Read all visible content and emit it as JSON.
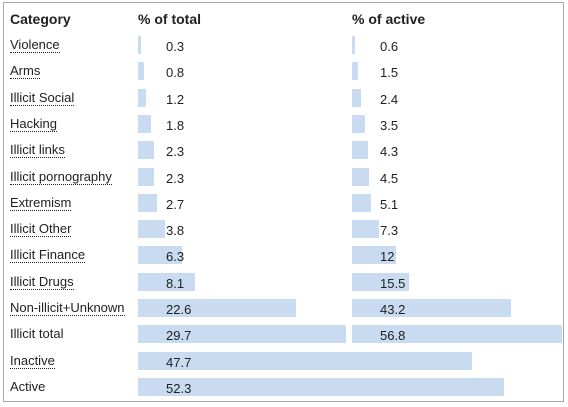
{
  "table": {
    "headers": {
      "category": "Category",
      "pct_total": "% of total",
      "pct_active": "% of active"
    },
    "rows": [
      {
        "label": "Violence",
        "total": "0.3",
        "active": "0.6",
        "linked": true
      },
      {
        "label": "Arms",
        "total": "0.8",
        "active": "1.5",
        "linked": true
      },
      {
        "label": "Illicit Social",
        "total": "1.2",
        "active": "2.4",
        "linked": true
      },
      {
        "label": "Hacking",
        "total": "1.8",
        "active": "3.5",
        "linked": true
      },
      {
        "label": "Illicit links",
        "total": "2.3",
        "active": "4.3",
        "linked": true
      },
      {
        "label": "Illicit pornography",
        "total": "2.3",
        "active": "4.5",
        "linked": true
      },
      {
        "label": "Extremism",
        "total": "2.7",
        "active": "5.1",
        "linked": true
      },
      {
        "label": "Illicit Other",
        "total": "3.8",
        "active": "7.3",
        "linked": true
      },
      {
        "label": "Illicit Finance",
        "total": "6.3",
        "active": "12",
        "linked": true
      },
      {
        "label": "Illicit Drugs",
        "total": "8.1",
        "active": "15.5",
        "linked": true
      },
      {
        "label": "Non-illicit+Unknown",
        "total": "22.6",
        "active": "43.2",
        "linked": true
      },
      {
        "label": "Illicit total",
        "total": "29.7",
        "active": "56.8",
        "linked": false
      },
      {
        "label": "Inactive",
        "total": "47.7",
        "active": "",
        "linked": true
      },
      {
        "label": "Active",
        "total": "52.3",
        "active": "",
        "linked": false
      }
    ]
  },
  "colors": {
    "bar": "#c9dbf0",
    "border": "#a2a9b1",
    "text": "#202122"
  }
}
